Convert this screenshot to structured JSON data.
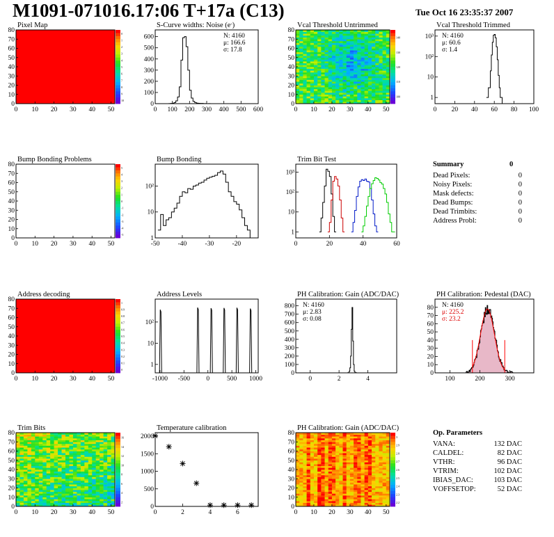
{
  "header": {
    "title": "M1091-071016.17:06 T+17a (C13)",
    "datestamp": "Tue Oct 16 23:35:37 2007"
  },
  "colors": {
    "map_red": "#ff0000",
    "trim_red": "#e81010",
    "trim_darkred": "#cc0000",
    "trim_blue": "#0018c8",
    "trim_green": "#00cc00",
    "stat_red": "#dd0000",
    "pedestal_fill": "#e8b8c8"
  },
  "chart_data": [
    {
      "id": "pixel-map",
      "type": "heatmap",
      "title": "Pixel Map",
      "xlim": [
        0,
        52
      ],
      "ylim": [
        0,
        80
      ],
      "xticks": [
        0,
        10,
        20,
        30,
        40,
        50
      ],
      "yticks": [
        0,
        10,
        20,
        30,
        40,
        50,
        60,
        70,
        80
      ],
      "fill": "uniform",
      "value": 10,
      "palette": {
        "ticks": [
          "0",
          "1",
          "2",
          "3",
          "4",
          "5",
          "6",
          "7",
          "8",
          "9",
          "10"
        ]
      }
    },
    {
      "id": "scurve-noise",
      "type": "line",
      "title": "S-Curve widths: Noise (e^{-})",
      "title_main": "S-Curve widths: Noise (e",
      "title_sup": "-",
      "title_tail": ")",
      "xlim": [
        0,
        600
      ],
      "ylim": [
        0,
        660
      ],
      "xticks": [
        0,
        100,
        200,
        300,
        400,
        500,
        600
      ],
      "yticks": [
        0,
        100,
        200,
        300,
        400,
        500,
        600
      ],
      "x": [
        70,
        80,
        90,
        100,
        110,
        120,
        130,
        140,
        150,
        160,
        170,
        180,
        190,
        200,
        210,
        220,
        230,
        240,
        250,
        260,
        270,
        280,
        290,
        300,
        310,
        320
      ],
      "y": [
        0,
        1,
        2,
        4,
        10,
        25,
        60,
        150,
        390,
        590,
        600,
        510,
        300,
        120,
        50,
        20,
        10,
        5,
        3,
        2,
        2,
        1,
        1,
        0,
        1,
        0
      ],
      "stats": [
        {
          "label": "N: 4160"
        },
        {
          "label": "μ: 166.6"
        },
        {
          "label": "σ: 17.8"
        }
      ]
    },
    {
      "id": "vcal-untrimmed",
      "type": "heatmap",
      "title": "Vcal Threshold Untrimmed",
      "xlim": [
        0,
        52
      ],
      "ylim": [
        0,
        80
      ],
      "xticks": [
        0,
        10,
        20,
        30,
        40,
        50
      ],
      "yticks": [
        0,
        10,
        20,
        30,
        40,
        50,
        60,
        70,
        80
      ],
      "fill": "noisy-threshold",
      "palette": {
        "ticks": [
          "140",
          "130",
          "120",
          "110",
          "100"
        ]
      }
    },
    {
      "id": "vcal-trimmed",
      "type": "line",
      "title": "Vcal Threshold Trimmed",
      "xlim": [
        0,
        100
      ],
      "ylim": [
        0.5,
        2000
      ],
      "yscale": "log",
      "xticks": [
        0,
        20,
        40,
        60,
        80,
        100
      ],
      "yticks": [
        {
          "v": 1,
          "label": "1"
        },
        {
          "v": 10,
          "label": "10"
        },
        {
          "v": 100,
          "label": "10²"
        },
        {
          "v": 1000,
          "label": "10³"
        }
      ],
      "x": [
        52,
        54,
        56,
        57,
        58,
        59,
        60,
        61,
        62,
        63,
        64,
        65,
        66,
        68,
        70
      ],
      "y": [
        1,
        3,
        20,
        120,
        500,
        1100,
        1200,
        820,
        300,
        70,
        12,
        3,
        1,
        0.5,
        0.5
      ],
      "stats": [
        {
          "label": "N: 4160"
        },
        {
          "label": "μ: 60.6"
        },
        {
          "label": "σ: 1.4"
        }
      ]
    },
    {
      "id": "bump-problems",
      "type": "heatmap",
      "title": "Bump Bonding Problems",
      "xlim": [
        0,
        52
      ],
      "ylim": [
        0,
        80
      ],
      "xticks": [
        0,
        10,
        20,
        30,
        40,
        50
      ],
      "yticks": [
        0,
        10,
        20,
        30,
        40,
        50,
        60,
        70,
        80
      ],
      "fill": "empty",
      "palette": {
        "ticks": [
          "5",
          "4",
          "3",
          "2",
          "1",
          "0",
          "-1",
          "-2",
          "-3",
          "-4",
          "-5"
        ]
      }
    },
    {
      "id": "bump-bonding",
      "type": "line",
      "title": "Bump Bonding",
      "xlim": [
        -50,
        -12
      ],
      "ylim": [
        1,
        700
      ],
      "yscale": "log",
      "xticks": [
        -50,
        -40,
        -30,
        -20
      ],
      "yticks": [
        {
          "v": 1,
          "label": "1"
        },
        {
          "v": 10,
          "label": "10"
        },
        {
          "v": 100,
          "label": "10²"
        }
      ],
      "x": [
        -49,
        -48,
        -47,
        -46,
        -45,
        -44,
        -43,
        -42,
        -41,
        -40,
        -39,
        -38,
        -37,
        -36,
        -35,
        -34,
        -33,
        -32,
        -31,
        -30,
        -29,
        -28,
        -27,
        -26,
        -25,
        -24,
        -23,
        -22,
        -21,
        -20,
        -19,
        -18,
        -17,
        -16,
        -15
      ],
      "y": [
        2,
        8,
        3,
        5,
        6,
        10,
        14,
        22,
        40,
        60,
        55,
        80,
        75,
        100,
        110,
        130,
        140,
        170,
        200,
        220,
        240,
        260,
        330,
        380,
        290,
        140,
        60,
        40,
        25,
        20,
        12,
        6,
        3,
        2,
        1
      ],
      "stats": []
    },
    {
      "id": "trim-bit-test",
      "type": "line",
      "title": "Trim Bit Test",
      "xlim": [
        0,
        60
      ],
      "ylim": [
        0.5,
        2500
      ],
      "yscale": "log",
      "xticks": [
        0,
        20,
        40,
        60
      ],
      "yticks": [
        {
          "v": 1,
          "label": "1"
        },
        {
          "v": 10,
          "label": "10"
        },
        {
          "v": 100,
          "label": "10²"
        },
        {
          "v": 1000,
          "label": "10³"
        }
      ],
      "series": [
        {
          "color": "#000000",
          "x": [
            14,
            15,
            16,
            17,
            18,
            19,
            20,
            21,
            22,
            23
          ],
          "y": [
            1,
            5,
            30,
            200,
            1400,
            1100,
            600,
            80,
            6,
            1
          ]
        },
        {
          "color": "#cc0000",
          "x": [
            19,
            20,
            21,
            22,
            23,
            24,
            25,
            26,
            27,
            28
          ],
          "y": [
            1,
            3,
            40,
            350,
            600,
            450,
            200,
            40,
            5,
            1
          ]
        },
        {
          "color": "#0018c8",
          "x": [
            33,
            34,
            35,
            36,
            37,
            38,
            39,
            40,
            41,
            42,
            43,
            44,
            45,
            46,
            47,
            48
          ],
          "y": [
            1,
            3,
            12,
            60,
            180,
            350,
            420,
            380,
            450,
            350,
            320,
            150,
            40,
            8,
            2,
            1
          ]
        },
        {
          "color": "#00cc00",
          "x": [
            39,
            40,
            41,
            42,
            43,
            44,
            45,
            46,
            47,
            48,
            49,
            50,
            51,
            52,
            53,
            54,
            55,
            56,
            57,
            58
          ],
          "y": [
            1,
            2,
            6,
            20,
            60,
            150,
            260,
            380,
            520,
            480,
            400,
            300,
            250,
            150,
            80,
            30,
            8,
            3,
            1,
            1
          ]
        }
      ],
      "stats": []
    },
    {
      "id": "summary",
      "type": "table",
      "title": "Summary",
      "total": "0",
      "rows": [
        {
          "label": "Dead Pixels:",
          "value": "0"
        },
        {
          "label": "Noisy Pixels:",
          "value": "0"
        },
        {
          "label": "Mask defects:",
          "value": "0"
        },
        {
          "label": "Dead Bumps:",
          "value": "0"
        },
        {
          "label": "Dead Trimbits:",
          "value": "0"
        },
        {
          "label": "Address Probl:",
          "value": "0"
        }
      ]
    },
    {
      "id": "address-decoding",
      "type": "heatmap",
      "title": "Address decoding",
      "xlim": [
        0,
        52
      ],
      "ylim": [
        0,
        80
      ],
      "xticks": [
        0,
        10,
        20,
        30,
        40,
        50
      ],
      "yticks": [
        0,
        10,
        20,
        30,
        40,
        50,
        60,
        70,
        80
      ],
      "fill": "uniform",
      "value": 1,
      "palette": {
        "ticks": [
          "1",
          "0.9",
          "0.8",
          "0.7",
          "0.6",
          "0.5",
          "0.4",
          "0.3",
          "0.2",
          "0.1",
          "0"
        ]
      }
    },
    {
      "id": "address-levels",
      "type": "line",
      "title": "Address Levels",
      "xlim": [
        -1100,
        1050
      ],
      "ylim": [
        0.4,
        1200
      ],
      "yscale": "log",
      "xticks": [
        -1000,
        -500,
        0,
        500,
        1000
      ],
      "yticks": [
        {
          "v": 1,
          "label": "1"
        },
        {
          "v": 10,
          "label": "10"
        },
        {
          "v": 100,
          "label": "10²"
        }
      ],
      "peaks": [
        -980,
        -200,
        80,
        350,
        620,
        900
      ],
      "peak_heights": [
        380,
        480,
        450,
        460,
        470,
        430
      ],
      "stats": []
    },
    {
      "id": "ph-gain-hist",
      "type": "line",
      "title": "PH Calibration: Gain (ADC/DAC)",
      "xlim": [
        -1,
        6
      ],
      "ylim": [
        0,
        880
      ],
      "xticks": [
        0,
        2,
        4
      ],
      "yticks": [
        0,
        100,
        200,
        300,
        400,
        500,
        600,
        700,
        800
      ],
      "x": [
        2.5,
        2.6,
        2.7,
        2.75,
        2.8,
        2.85,
        2.9,
        2.95,
        3.0,
        3.05,
        3.1,
        3.2
      ],
      "y": [
        0,
        2,
        20,
        60,
        200,
        520,
        780,
        380,
        100,
        20,
        3,
        0
      ],
      "stats": [
        {
          "label": "N: 4160"
        },
        {
          "label": "μ: 2.83"
        },
        {
          "label": "σ: 0.08"
        }
      ]
    },
    {
      "id": "ph-pedestal",
      "type": "area",
      "title": "PH Calibration: Pedestal (DAC)",
      "xlim": [
        50,
        380
      ],
      "ylim": [
        0,
        90
      ],
      "xticks": [
        100,
        200,
        300
      ],
      "yticks": [
        0,
        10,
        20,
        30,
        40,
        50,
        60,
        70,
        80
      ],
      "mean": 225.2,
      "sigma": 23.2,
      "fit_peak": 78,
      "fit_range": [
        175,
        283
      ],
      "stats": [
        {
          "label": "N: 4160"
        },
        {
          "label": "μ: 225.2",
          "red": true
        },
        {
          "label": "σ: 23.2",
          "red": true
        }
      ]
    },
    {
      "id": "trim-bits-map",
      "type": "heatmap",
      "title": "Trim Bits",
      "xlim": [
        0,
        52
      ],
      "ylim": [
        0,
        80
      ],
      "xticks": [
        0,
        10,
        20,
        30,
        40,
        50
      ],
      "yticks": [
        0,
        10,
        20,
        30,
        40,
        50,
        60,
        70,
        80
      ],
      "fill": "noisy-trim",
      "palette": {
        "ticks": [
          "16",
          "14",
          "12",
          "10",
          "8",
          "6",
          "4",
          "2"
        ]
      }
    },
    {
      "id": "temperature-calibration",
      "type": "scatter",
      "title": "Temperature calibration",
      "xlim": [
        0,
        7.5
      ],
      "ylim": [
        0,
        2100
      ],
      "xticks": [
        0,
        2,
        4,
        6
      ],
      "yticks": [
        0,
        500,
        1000,
        1500,
        2000
      ],
      "x": [
        0,
        1,
        2,
        3,
        4,
        5,
        6,
        7
      ],
      "y": [
        2010,
        1700,
        1220,
        660,
        35,
        35,
        35,
        35
      ],
      "stats": []
    },
    {
      "id": "ph-gain-map",
      "type": "heatmap",
      "title": "PH Calibration: Gain (ADC/DAC)",
      "xlim": [
        0,
        52
      ],
      "ylim": [
        0,
        80
      ],
      "xticks": [
        0,
        10,
        20,
        30,
        40,
        50
      ],
      "yticks": [
        0,
        10,
        20,
        30,
        40,
        50,
        60,
        70,
        80
      ],
      "fill": "noisy-gain",
      "palette": {
        "ticks": [
          "3",
          "2.9",
          "2.8",
          "2.7",
          "2.6",
          "2.5",
          "2.4",
          "2.3",
          "2.2"
        ]
      }
    },
    {
      "id": "op-parameters",
      "type": "table",
      "title": "Op. Parameters",
      "rows": [
        {
          "label": "VANA:",
          "value": "132 DAC"
        },
        {
          "label": "CALDEL:",
          "value": "82 DAC"
        },
        {
          "label": "VTHR:",
          "value": "96 DAC"
        },
        {
          "label": "VTRIM:",
          "value": "102 DAC"
        },
        {
          "label": "IBIAS_DAC:",
          "value": "103 DAC"
        },
        {
          "label": "VOFFSETOP:",
          "value": "52 DAC"
        }
      ]
    }
  ]
}
